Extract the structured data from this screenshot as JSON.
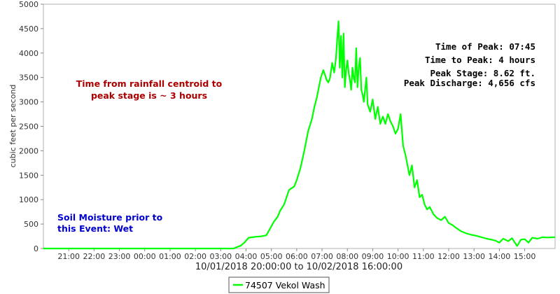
{
  "chart_data": {
    "type": "line",
    "ylabel": "cubic feet per second",
    "xlabel": "10/01/2018 20:00:00 to 10/02/2018 16:00:00",
    "ylim": [
      0,
      5000
    ],
    "y_ticks": [
      "0",
      "500",
      "1000",
      "1500",
      "2000",
      "2500",
      "3000",
      "3500",
      "4000",
      "4500",
      "5000"
    ],
    "x_ticks": [
      "21:00",
      "22:00",
      "23:00",
      "00:00",
      "01:00",
      "02:00",
      "03:00",
      "04:00",
      "05:00",
      "06:00",
      "07:00",
      "08:00",
      "09:00",
      "10:00",
      "11:00",
      "12:00",
      "13:00",
      "14:00",
      "15:00"
    ],
    "xlim_hours": [
      20.0,
      40.2
    ],
    "grid": false,
    "legend_position": "bottom-center",
    "series": [
      {
        "name": "74507 Vekol Wash",
        "color": "#00ff00",
        "x_hours": [
          20.0,
          27.5,
          27.8,
          27.95,
          28.1,
          28.25,
          28.4,
          28.6,
          28.8,
          29.1,
          29.25,
          29.35,
          29.5,
          29.7,
          29.9,
          30.0,
          30.15,
          30.3,
          30.45,
          30.6,
          30.7,
          30.8,
          30.95,
          31.05,
          31.12,
          31.18,
          31.25,
          31.32,
          31.4,
          31.48,
          31.55,
          31.6,
          31.65,
          31.7,
          31.75,
          31.8,
          31.85,
          31.9,
          31.95,
          32.0,
          32.05,
          32.1,
          32.15,
          32.2,
          32.25,
          32.3,
          32.35,
          32.4,
          32.45,
          32.5,
          32.55,
          32.6,
          32.65,
          32.7,
          32.75,
          32.8,
          32.9,
          33.0,
          33.1,
          33.2,
          33.3,
          33.4,
          33.5,
          33.6,
          33.7,
          33.8,
          33.9,
          34.0,
          34.1,
          34.2,
          34.3,
          34.45,
          34.55,
          34.65,
          34.75,
          34.85,
          34.95,
          35.05,
          35.15,
          35.25,
          35.4,
          35.55,
          35.7,
          35.85,
          36.0,
          36.15,
          36.3,
          36.5,
          36.7,
          36.9,
          37.1,
          37.3,
          37.5,
          37.7,
          37.85,
          38.0,
          38.15,
          38.35,
          38.5,
          38.7,
          38.85,
          39.0,
          39.15,
          39.3,
          39.5,
          39.7,
          39.9,
          40.2
        ],
        "values": [
          0,
          0,
          60,
          130,
          220,
          230,
          240,
          250,
          270,
          550,
          650,
          780,
          900,
          1200,
          1270,
          1400,
          1650,
          2000,
          2400,
          2650,
          2900,
          3100,
          3500,
          3650,
          3550,
          3450,
          3400,
          3500,
          3800,
          3600,
          3900,
          4300,
          4650,
          3700,
          4350,
          3500,
          4400,
          3300,
          3650,
          3850,
          3600,
          3450,
          3250,
          3700,
          3500,
          3400,
          4100,
          3300,
          3700,
          3900,
          3250,
          3150,
          3000,
          3250,
          3500,
          2950,
          2800,
          3050,
          2650,
          2900,
          2550,
          2700,
          2550,
          2750,
          2600,
          2500,
          2350,
          2450,
          2750,
          2100,
          1900,
          1500,
          1700,
          1250,
          1400,
          1050,
          1100,
          900,
          800,
          850,
          700,
          620,
          580,
          650,
          520,
          480,
          420,
          350,
          310,
          280,
          260,
          230,
          200,
          180,
          160,
          120,
          200,
          150,
          210,
          50,
          180,
          190,
          120,
          220,
          200,
          230,
          225,
          230
        ]
      }
    ],
    "annotations": {
      "centroid_line1": "Time from rainfall centroid to",
      "centroid_line2": "peak stage is ~ 3 hours",
      "soil_line1": "Soil Moisture prior to",
      "soil_line2": "this Event: Wet",
      "peak_time": "Time of Peak: 07:45",
      "peak_to": "Time to Peak: 4 hours",
      "peak_stage": "Peak Stage: 8.62 ft.",
      "peak_discharge": "Peak Discharge: 4,656 cfs"
    },
    "colors": {
      "line": "#00ff00",
      "centroid_text": "#aa0000",
      "soil_text": "#0000cc",
      "axis": "#888888",
      "plot_border": "#b0b0b0"
    }
  }
}
